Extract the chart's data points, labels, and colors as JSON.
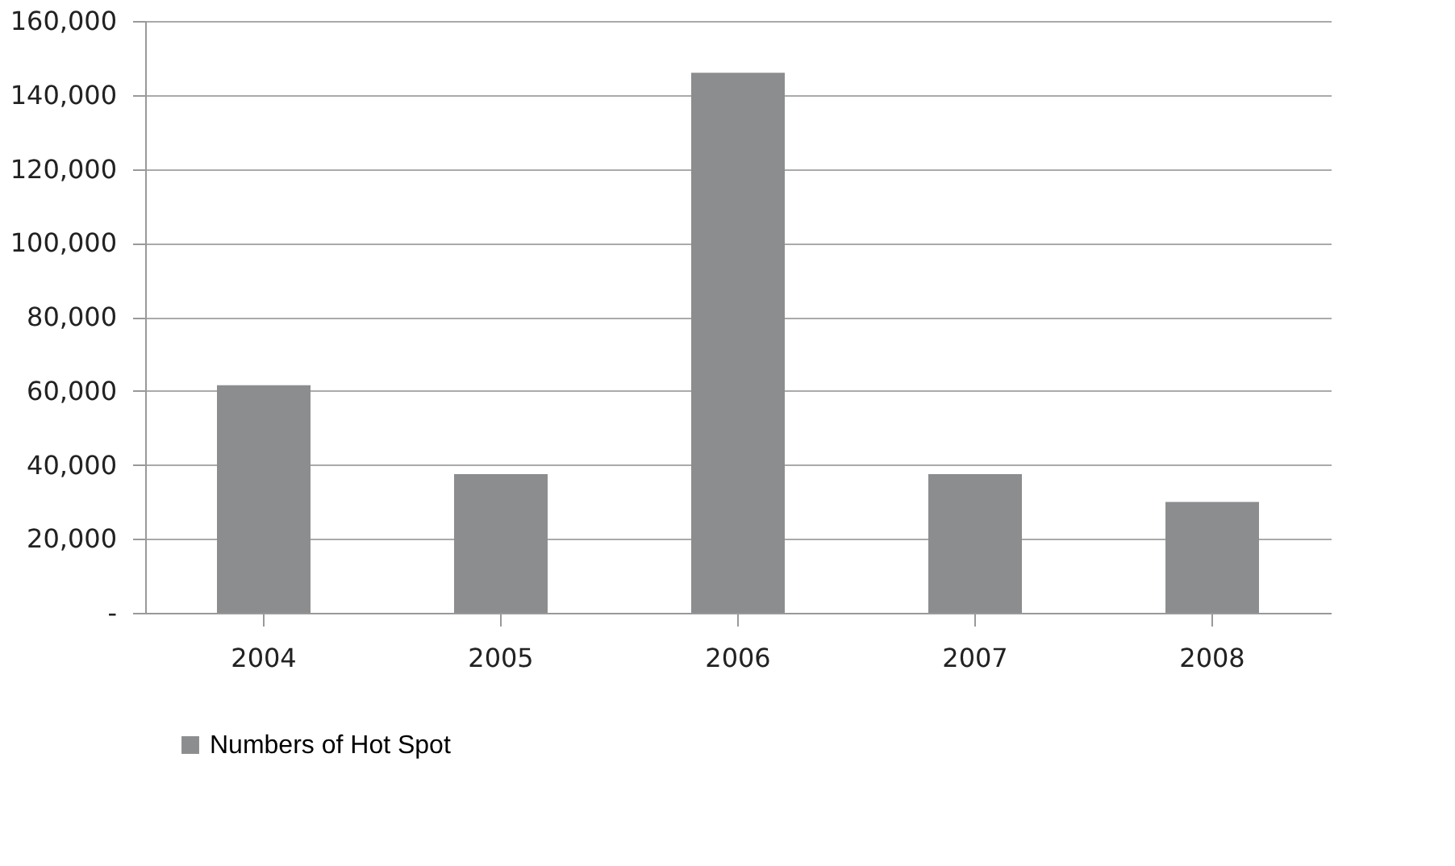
{
  "chart_data": {
    "type": "bar",
    "categories": [
      "2004",
      "2005",
      "2006",
      "2007",
      "2008"
    ],
    "series": [
      {
        "name": "Numbers of Hot Spot",
        "color": "#8c8d8f",
        "values": [
          61500,
          37500,
          146000,
          37500,
          30000
        ]
      }
    ],
    "ylim": [
      0,
      160000
    ],
    "yticks": [
      {
        "value": 0,
        "label": "-"
      },
      {
        "value": 20000,
        "label": "20,000"
      },
      {
        "value": 40000,
        "label": "40,000"
      },
      {
        "value": 60000,
        "label": "60,000"
      },
      {
        "value": 80000,
        "label": "80,000"
      },
      {
        "value": 100000,
        "label": "100,000"
      },
      {
        "value": 120000,
        "label": "120,000"
      },
      {
        "value": 140000,
        "label": "140,000"
      },
      {
        "value": 160000,
        "label": "160,000"
      }
    ],
    "grid": "y",
    "legend": "bottom"
  }
}
